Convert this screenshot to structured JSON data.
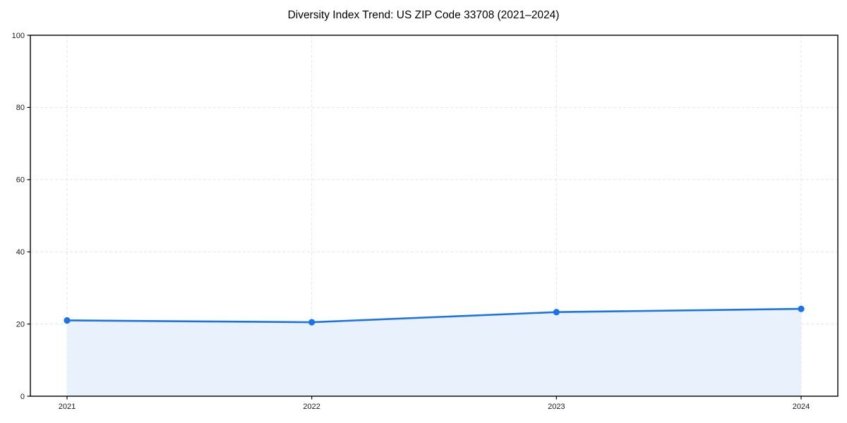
{
  "page": {
    "background_color": "#ffffff"
  },
  "chart_data": {
    "type": "area",
    "title": "Diversity Index Trend: US ZIP Code 33708 (2021–2024)",
    "categories": [
      "2021",
      "2022",
      "2023",
      "2024"
    ],
    "values": [
      21.0,
      20.5,
      23.3,
      24.2
    ],
    "xlabel": "",
    "ylabel": "",
    "ylim": [
      0,
      100
    ],
    "yticks": [
      0,
      20,
      40,
      60,
      80,
      100
    ],
    "grid": "dashed-both-axes",
    "legend_position": "none",
    "plot_border": "full-box",
    "colors": {
      "line": "#1a73e8",
      "marker": "#1a73e8",
      "fill": "#e9f1fd",
      "grid": "#e5e5e5",
      "axis": "#000000",
      "title_text": "#000000",
      "tick_text": "#1a1a1a"
    }
  }
}
